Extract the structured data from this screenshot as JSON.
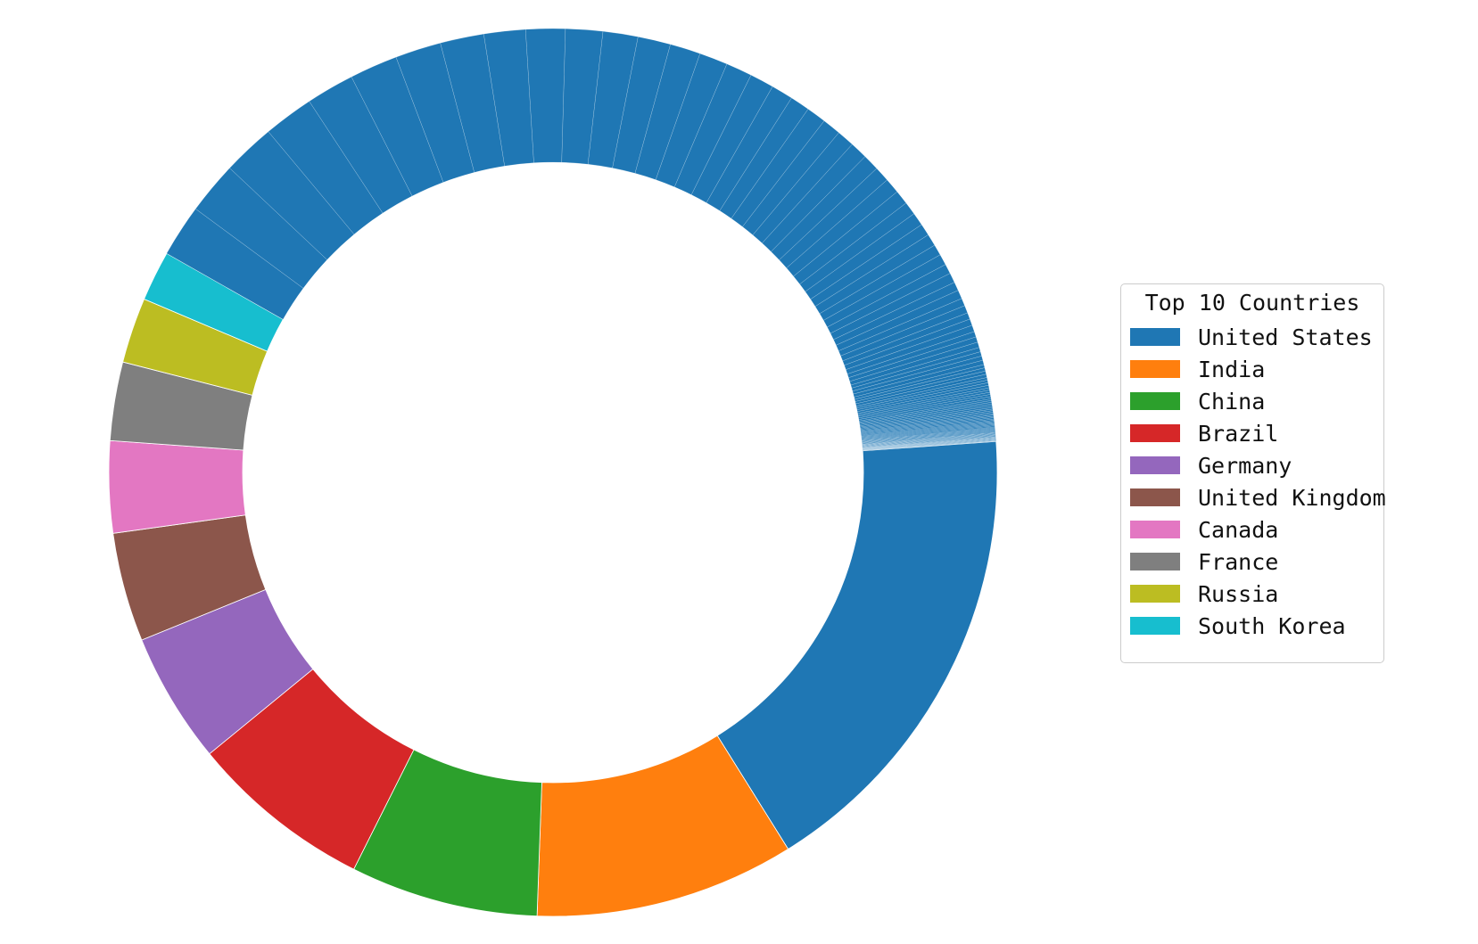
{
  "chart_data": {
    "type": "pie",
    "style": "donut",
    "legend_title": "Top 10 Countries",
    "legend_position": "right",
    "start_angle_deg": -4,
    "direction": "clockwise",
    "categories": [
      "United States",
      "India",
      "China",
      "Brazil",
      "Germany",
      "United Kingdom",
      "Canada",
      "France",
      "Russia",
      "South Korea"
    ],
    "values": [
      21.7,
      11.9,
      8.6,
      8.4,
      6.0,
      5.0,
      4.2,
      3.6,
      3.0,
      2.3
    ],
    "colors": [
      "#1f77b4",
      "#ff7f0e",
      "#2ca02c",
      "#d62728",
      "#9467bd",
      "#8c564b",
      "#e377c2",
      "#7f7f7f",
      "#bcbd22",
      "#17becf"
    ],
    "other_segments": {
      "color": "#1f77b4",
      "count": 107,
      "values": [
        2.4,
        2.4,
        2.4,
        2.3,
        2.2,
        2.2,
        2.1,
        2.0,
        1.9,
        1.8,
        1.7,
        1.6,
        1.5,
        1.4,
        1.3,
        1.2,
        1.1,
        1.0,
        0.9,
        0.9,
        0.85,
        0.8,
        0.8,
        0.75,
        0.7,
        0.7,
        0.65,
        0.6,
        0.6,
        0.55,
        0.55,
        0.5,
        0.5,
        0.45,
        0.45,
        0.4,
        0.4,
        0.35,
        0.35,
        0.3,
        0.3,
        0.3,
        0.25,
        0.25,
        0.25,
        0.2,
        0.2,
        0.2,
        0.2,
        0.15,
        0.15,
        0.15,
        0.15,
        0.12,
        0.12,
        0.12,
        0.12,
        0.1,
        0.1,
        0.1,
        0.1,
        0.1,
        0.08,
        0.08,
        0.08,
        0.08,
        0.08,
        0.07,
        0.07,
        0.07,
        0.07,
        0.06,
        0.06,
        0.06,
        0.06,
        0.06,
        0.05,
        0.05,
        0.05,
        0.05,
        0.05,
        0.05,
        0.04,
        0.04,
        0.04,
        0.04,
        0.04,
        0.04,
        0.03,
        0.03,
        0.03,
        0.03,
        0.03,
        0.03,
        0.03,
        0.02,
        0.02,
        0.02,
        0.02,
        0.02,
        0.02,
        0.02,
        0.02,
        0.02,
        0.01,
        0.01,
        0.01
      ]
    }
  }
}
